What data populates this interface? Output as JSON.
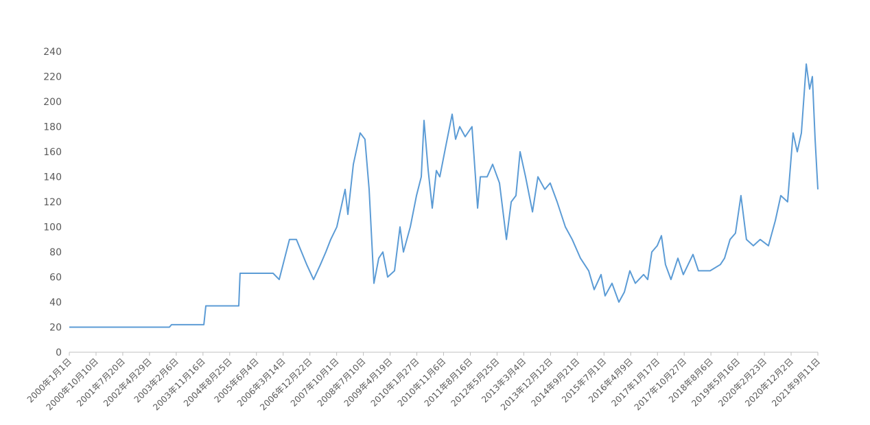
{
  "chart_data": {
    "type": "line",
    "x": [
      "2000-01-01",
      "2002-11-26",
      "2002-12-18",
      "2003-11-25",
      "2003-12-16",
      "2004-11-29",
      "2004-12-13",
      "2005-11-27",
      "2006-01-31",
      "2006-05-20",
      "2006-08-01",
      "2006-11-18",
      "2007-01-30",
      "2007-04-12",
      "2007-06-09",
      "2007-07-30",
      "2007-10-03",
      "2007-12-30",
      "2008-01-28",
      "2008-03-26",
      "2008-06-06",
      "2008-07-27",
      "2008-09-09",
      "2008-10-30",
      "2008-12-20",
      "2009-02-01",
      "2009-03-24",
      "2009-06-05",
      "2009-08-02",
      "2009-09-07",
      "2009-11-19",
      "2010-01-23",
      "2010-03-15",
      "2010-04-13",
      "2010-05-27",
      "2010-07-09",
      "2010-08-22",
      "2010-09-27",
      "2010-12-01",
      "2011-02-05",
      "2011-03-13",
      "2011-04-26",
      "2011-06-23",
      "2011-09-03",
      "2011-11-01",
      "2011-11-30",
      "2012-02-10",
      "2012-04-08",
      "2012-06-20",
      "2012-09-01",
      "2012-10-22",
      "2012-12-11",
      "2013-01-24",
      "2013-03-23",
      "2013-06-04",
      "2013-08-01",
      "2013-10-12",
      "2013-12-09",
      "2014-02-20",
      "2014-05-18",
      "2014-07-30",
      "2014-10-25",
      "2015-01-20",
      "2015-03-19",
      "2015-05-31",
      "2015-07-13",
      "2015-09-24",
      "2015-12-06",
      "2016-02-02",
      "2016-03-31",
      "2016-05-28",
      "2016-08-23",
      "2016-10-06",
      "2016-11-18",
      "2017-01-15",
      "2017-02-28",
      "2017-04-12",
      "2017-06-09",
      "2017-08-21",
      "2017-10-18",
      "2018-01-28",
      "2018-03-27",
      "2018-07-29",
      "2018-11-14",
      "2018-12-28",
      "2019-02-24",
      "2019-04-23",
      "2019-06-20",
      "2019-08-17",
      "2019-10-29",
      "2020-01-10",
      "2020-04-06",
      "2020-06-18",
      "2020-08-15",
      "2020-10-26",
      "2020-12-23",
      "2021-02-05",
      "2021-03-21",
      "2021-05-11",
      "2021-06-16",
      "2021-07-15",
      "2021-08-13",
      "2021-09-11"
    ],
    "series": [
      {
        "color": "#5b9bd5",
        "values": [
          20,
          20,
          22,
          22,
          37,
          37,
          63,
          63,
          58,
          90,
          90,
          70,
          58,
          70,
          80,
          90,
          100,
          130,
          110,
          150,
          175,
          170,
          130,
          55,
          75,
          80,
          60,
          65,
          100,
          80,
          100,
          125,
          140,
          185,
          145,
          115,
          145,
          140,
          165,
          190,
          170,
          180,
          172,
          180,
          115,
          140,
          140,
          150,
          135,
          90,
          120,
          125,
          160,
          140,
          112,
          140,
          130,
          135,
          120,
          100,
          90,
          75,
          65,
          50,
          62,
          45,
          55,
          40,
          48,
          65,
          55,
          62,
          58,
          80,
          85,
          93,
          70,
          58,
          75,
          62,
          78,
          65,
          65,
          70,
          75,
          90,
          95,
          125,
          90,
          85,
          90,
          85,
          105,
          125,
          120,
          175,
          160,
          175,
          230,
          210,
          220,
          170,
          130
        ]
      }
    ],
    "xlim": [
      "2000-01-01",
      "2021-09-11"
    ],
    "xticks": [
      "2000年1月1日",
      "2000年10月10日",
      "2001年7月20日",
      "2002年4月29日",
      "2003年2月6日",
      "2003年11月16日",
      "2004年8月25日",
      "2005年6月4日",
      "2006年3月14日",
      "2006年12月22日",
      "2007年10月1日",
      "2008年7月10日",
      "2009年4月19日",
      "2010年1月27日",
      "2010年11月6日",
      "2011年8月16日",
      "2012年5月25日",
      "2013年3月4日",
      "2013年12月12日",
      "2014年9月21日",
      "2015年7月1日",
      "2016年4月9日",
      "2017年1月17日",
      "2017年10月27日",
      "2018年8月6日",
      "2019年5月16日",
      "2020年2月23日",
      "2020年12月2日",
      "2021年9月11日"
    ],
    "ylim": [
      0,
      240
    ],
    "yticks": [
      0,
      20,
      40,
      60,
      80,
      100,
      120,
      140,
      160,
      180,
      200,
      220,
      240
    ],
    "grid": false
  }
}
